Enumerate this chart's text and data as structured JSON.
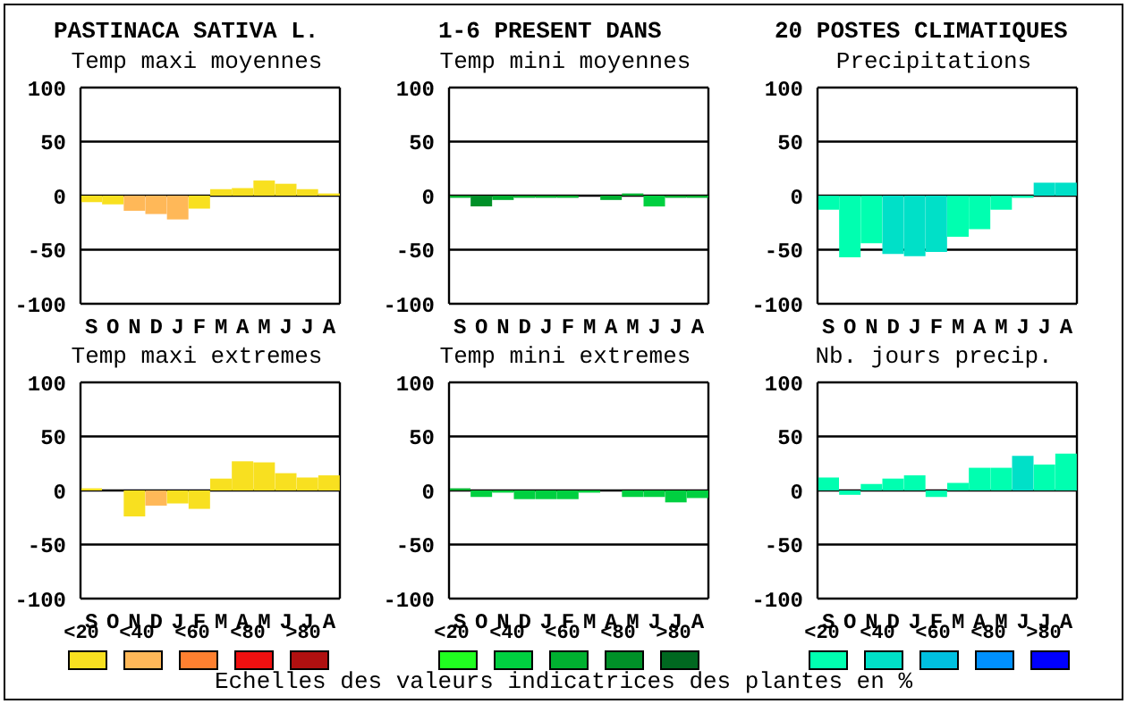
{
  "chart_data": [
    {
      "type": "other",
      "annotations": [
        "PASTINACA SATIVA L.",
        "1-6 PRESENT DANS",
        "20 POSTES CLIMATIQUES"
      ]
    },
    {
      "type": "bar",
      "title": "Temp maxi moyennes",
      "categories": [
        "S",
        "O",
        "N",
        "D",
        "J",
        "F",
        "M",
        "A",
        "M",
        "J",
        "J",
        "A"
      ],
      "values": [
        -6,
        -8,
        -14,
        -17,
        -22,
        -12,
        6,
        7,
        14,
        11,
        6,
        2
      ],
      "colors": [
        "#f8e020",
        "#f8e020",
        "#ffb858",
        "#ffb858",
        "#ffb858",
        "#f8e020",
        "#f8e020",
        "#f8e020",
        "#f8e020",
        "#f8e020",
        "#f8e020",
        "#f8e020"
      ],
      "ylim": [
        -100,
        100
      ],
      "yticks": [
        -100,
        -50,
        0,
        50,
        100
      ],
      "grid": "y"
    },
    {
      "type": "bar",
      "title": "Temp mini moyennes",
      "categories": [
        "S",
        "O",
        "N",
        "D",
        "J",
        "F",
        "M",
        "A",
        "M",
        "J",
        "J",
        "A"
      ],
      "values": [
        -2,
        -10,
        -4,
        -2,
        -2,
        -2,
        0,
        -4,
        2,
        -10,
        -2,
        -2
      ],
      "colors": [
        "#00b030",
        "#009028",
        "#00b030",
        "#00b030",
        "#00b030",
        "#00b030",
        "#00b030",
        "#00b030",
        "#00b030",
        "#00d040",
        "#00b030",
        "#00b030"
      ],
      "ylim": [
        -100,
        100
      ],
      "yticks": [
        -100,
        -50,
        0,
        50,
        100
      ],
      "grid": "y"
    },
    {
      "type": "bar",
      "title": "Precipitations",
      "categories": [
        "S",
        "O",
        "N",
        "D",
        "J",
        "F",
        "M",
        "A",
        "M",
        "J",
        "J",
        "A"
      ],
      "values": [
        -13,
        -57,
        -44,
        -54,
        -56,
        -52,
        -38,
        -31,
        -13,
        -2,
        12,
        12
      ],
      "colors": [
        "#00ffb0",
        "#00ffb0",
        "#00ffb0",
        "#00e0c8",
        "#00e0c8",
        "#00e0c8",
        "#00ffb0",
        "#00ffb0",
        "#00ffb0",
        "#00ffb0",
        "#00e0c8",
        "#00e0c8"
      ],
      "ylim": [
        -100,
        100
      ],
      "yticks": [
        -100,
        -50,
        0,
        50,
        100
      ],
      "grid": "y"
    },
    {
      "type": "bar",
      "title": "Temp maxi extremes",
      "categories": [
        "S",
        "O",
        "N",
        "D",
        "J",
        "F",
        "M",
        "A",
        "M",
        "J",
        "J",
        "A"
      ],
      "values": [
        2,
        0,
        -24,
        -14,
        -12,
        -17,
        11,
        27,
        26,
        16,
        12,
        14
      ],
      "colors": [
        "#f8e020",
        "#f8e020",
        "#f8e020",
        "#ffb858",
        "#f8e020",
        "#f8e020",
        "#f8e020",
        "#f8e020",
        "#f8e020",
        "#f8e020",
        "#f8e020",
        "#f8e020"
      ],
      "ylim": [
        -100,
        100
      ],
      "yticks": [
        -100,
        -50,
        0,
        50,
        100
      ],
      "grid": "y"
    },
    {
      "type": "bar",
      "title": "Temp mini extremes",
      "categories": [
        "S",
        "O",
        "N",
        "D",
        "J",
        "F",
        "M",
        "A",
        "M",
        "J",
        "J",
        "A"
      ],
      "values": [
        2,
        -6,
        -2,
        -8,
        -8,
        -8,
        -2,
        0,
        -6,
        -6,
        -11,
        -7
      ],
      "colors": [
        "#00b030",
        "#00d040",
        "#00d040",
        "#00d040",
        "#00d040",
        "#00d040",
        "#00d040",
        "#00d040",
        "#00d040",
        "#00d040",
        "#00d040",
        "#00d040"
      ],
      "ylim": [
        -100,
        100
      ],
      "yticks": [
        -100,
        -50,
        0,
        50,
        100
      ],
      "grid": "y"
    },
    {
      "type": "bar",
      "title": "Nb. jours precip.",
      "categories": [
        "S",
        "O",
        "N",
        "D",
        "J",
        "F",
        "M",
        "A",
        "M",
        "J",
        "J",
        "A"
      ],
      "values": [
        12,
        -4,
        6,
        11,
        14,
        -6,
        7,
        21,
        21,
        32,
        24,
        34
      ],
      "colors": [
        "#00ffb0",
        "#00ffb0",
        "#00ffb0",
        "#00ffb0",
        "#00ffb0",
        "#00ffb0",
        "#00ffb0",
        "#00ffb0",
        "#00ffb0",
        "#00e0c8",
        "#00ffb0",
        "#00ffb0"
      ],
      "ylim": [
        -100,
        100
      ],
      "yticks": [
        -100,
        -50,
        0,
        50,
        100
      ],
      "grid": "y"
    },
    {
      "type": "other",
      "categories": [
        "<20",
        "<40",
        "<60",
        "<80",
        ">80"
      ],
      "colors": [
        "#f8e020",
        "#ffb858",
        "#ff8030",
        "#f01010",
        "#b01010"
      ]
    },
    {
      "type": "other",
      "categories": [
        "<20",
        "<40",
        "<60",
        "<80",
        ">80"
      ],
      "colors": [
        "#20ff20",
        "#00d040",
        "#00b030",
        "#009028",
        "#006820"
      ]
    },
    {
      "type": "other",
      "categories": [
        "<20",
        "<40",
        "<60",
        "<80",
        ">80"
      ],
      "colors": [
        "#00ffb0",
        "#00e0c8",
        "#00c0e0",
        "#0090ff",
        "#0000ff"
      ],
      "annotations": [
        "Echelles des valeurs indicatrices des plantes en %"
      ]
    }
  ]
}
